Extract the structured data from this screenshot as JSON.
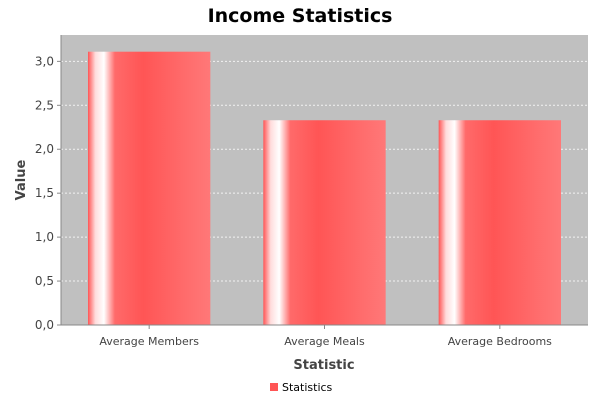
{
  "chart_data": {
    "type": "bar",
    "title": "Income Statistics",
    "xlabel": "Statistic",
    "ylabel": "Value",
    "categories": [
      "Average Members",
      "Average Meals",
      "Average Bedrooms"
    ],
    "series": [
      {
        "name": "Statistics",
        "values": [
          3.11,
          2.33,
          2.33
        ],
        "color": "#ff5555"
      }
    ],
    "ylim": [
      0,
      3.3
    ],
    "yticks": [
      0,
      0.5,
      1.0,
      1.5,
      2.0,
      2.5,
      3.0
    ],
    "ytick_labels": [
      "0,0",
      "0,5",
      "1,0",
      "1,5",
      "2,0",
      "2,5",
      "3,0"
    ],
    "grid": true,
    "legend_position": "bottom-center",
    "plot_background": "#c0c0c0"
  }
}
